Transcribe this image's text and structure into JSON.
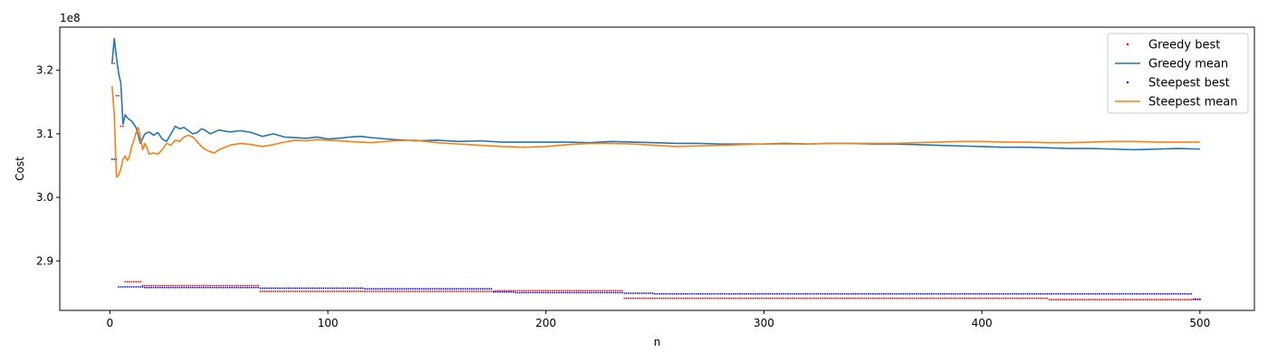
{
  "chart_data": {
    "type": "line",
    "xlabel": "n",
    "ylabel": "Cost",
    "y_offset_text": "1e8",
    "xlim": [
      -23,
      525
    ],
    "ylim": [
      2.822,
      3.268
    ],
    "x_ticks": [
      0,
      100,
      200,
      300,
      400,
      500
    ],
    "x_tick_labels": [
      "0",
      "100",
      "200",
      "300",
      "400",
      "500"
    ],
    "y_ticks": [
      2.9,
      3.0,
      3.1,
      3.2
    ],
    "y_tick_labels": [
      "2.9",
      "3.0",
      "3.1",
      "3.2"
    ],
    "grid": false,
    "legend_position": "top-right",
    "legend": [
      "Greedy best",
      "Greedy mean",
      "Steepest best",
      "Steepest mean"
    ],
    "colors": {
      "greedy_best": "#ff0000",
      "greedy_mean": "#1f77b4",
      "steepest_best": "#0000ff",
      "steepest_mean": "#ff7f0e"
    },
    "series": [
      {
        "name": "Greedy best",
        "kind": "step-markers",
        "steps": [
          [
            1,
            3.211
          ],
          [
            3,
            3.16
          ],
          [
            5,
            3.112
          ],
          [
            7,
            2.867
          ],
          [
            15,
            2.861
          ],
          [
            69,
            2.852
          ],
          [
            177,
            2.853
          ],
          [
            236,
            2.841
          ],
          [
            431,
            2.839
          ],
          [
            500,
            2.839
          ]
        ]
      },
      {
        "name": "Greedy mean",
        "kind": "line",
        "points": [
          [
            1,
            3.211
          ],
          [
            2,
            3.25
          ],
          [
            3,
            3.22
          ],
          [
            4,
            3.195
          ],
          [
            5,
            3.18
          ],
          [
            6,
            3.115
          ],
          [
            7,
            3.13
          ],
          [
            8,
            3.125
          ],
          [
            10,
            3.12
          ],
          [
            12,
            3.11
          ],
          [
            14,
            3.085
          ],
          [
            16,
            3.1
          ],
          [
            18,
            3.103
          ],
          [
            20,
            3.098
          ],
          [
            22,
            3.102
          ],
          [
            24,
            3.092
          ],
          [
            26,
            3.088
          ],
          [
            28,
            3.1
          ],
          [
            30,
            3.112
          ],
          [
            32,
            3.108
          ],
          [
            34,
            3.11
          ],
          [
            36,
            3.105
          ],
          [
            38,
            3.1
          ],
          [
            40,
            3.102
          ],
          [
            42,
            3.108
          ],
          [
            44,
            3.105
          ],
          [
            46,
            3.1
          ],
          [
            50,
            3.106
          ],
          [
            55,
            3.103
          ],
          [
            60,
            3.105
          ],
          [
            65,
            3.102
          ],
          [
            70,
            3.096
          ],
          [
            75,
            3.1
          ],
          [
            80,
            3.095
          ],
          [
            85,
            3.094
          ],
          [
            90,
            3.093
          ],
          [
            95,
            3.095
          ],
          [
            100,
            3.092
          ],
          [
            105,
            3.093
          ],
          [
            110,
            3.095
          ],
          [
            115,
            3.096
          ],
          [
            120,
            3.094
          ],
          [
            130,
            3.091
          ],
          [
            140,
            3.089
          ],
          [
            150,
            3.09
          ],
          [
            160,
            3.088
          ],
          [
            170,
            3.089
          ],
          [
            180,
            3.087
          ],
          [
            190,
            3.087
          ],
          [
            200,
            3.087
          ],
          [
            210,
            3.087
          ],
          [
            220,
            3.086
          ],
          [
            230,
            3.088
          ],
          [
            240,
            3.087
          ],
          [
            250,
            3.086
          ],
          [
            260,
            3.085
          ],
          [
            270,
            3.085
          ],
          [
            280,
            3.084
          ],
          [
            290,
            3.084
          ],
          [
            300,
            3.084
          ],
          [
            310,
            3.085
          ],
          [
            320,
            3.084
          ],
          [
            330,
            3.085
          ],
          [
            340,
            3.085
          ],
          [
            350,
            3.084
          ],
          [
            360,
            3.084
          ],
          [
            370,
            3.083
          ],
          [
            380,
            3.082
          ],
          [
            390,
            3.081
          ],
          [
            400,
            3.08
          ],
          [
            410,
            3.079
          ],
          [
            420,
            3.079
          ],
          [
            430,
            3.078
          ],
          [
            440,
            3.077
          ],
          [
            450,
            3.077
          ],
          [
            460,
            3.076
          ],
          [
            470,
            3.075
          ],
          [
            480,
            3.076
          ],
          [
            490,
            3.077
          ],
          [
            500,
            3.076
          ]
        ]
      },
      {
        "name": "Steepest best",
        "kind": "step-markers",
        "steps": [
          [
            1,
            3.06
          ],
          [
            4,
            2.859
          ],
          [
            16,
            2.858
          ],
          [
            69,
            2.857
          ],
          [
            117,
            2.856
          ],
          [
            176,
            2.851
          ],
          [
            186,
            2.85
          ],
          [
            236,
            2.849
          ],
          [
            250,
            2.848
          ],
          [
            497,
            2.84
          ],
          [
            500,
            2.84
          ]
        ]
      },
      {
        "name": "Steepest mean",
        "kind": "line",
        "points": [
          [
            1,
            3.175
          ],
          [
            2,
            3.13
          ],
          [
            3,
            3.032
          ],
          [
            4,
            3.035
          ],
          [
            5,
            3.045
          ],
          [
            6,
            3.06
          ],
          [
            7,
            3.065
          ],
          [
            8,
            3.058
          ],
          [
            9,
            3.065
          ],
          [
            10,
            3.08
          ],
          [
            11,
            3.09
          ],
          [
            12,
            3.102
          ],
          [
            13,
            3.11
          ],
          [
            14,
            3.095
          ],
          [
            15,
            3.075
          ],
          [
            16,
            3.085
          ],
          [
            17,
            3.078
          ],
          [
            18,
            3.068
          ],
          [
            20,
            3.07
          ],
          [
            22,
            3.068
          ],
          [
            24,
            3.075
          ],
          [
            26,
            3.085
          ],
          [
            28,
            3.082
          ],
          [
            30,
            3.09
          ],
          [
            32,
            3.088
          ],
          [
            34,
            3.095
          ],
          [
            36,
            3.098
          ],
          [
            38,
            3.095
          ],
          [
            40,
            3.088
          ],
          [
            42,
            3.08
          ],
          [
            44,
            3.075
          ],
          [
            46,
            3.072
          ],
          [
            48,
            3.07
          ],
          [
            50,
            3.075
          ],
          [
            55,
            3.082
          ],
          [
            60,
            3.085
          ],
          [
            65,
            3.083
          ],
          [
            70,
            3.08
          ],
          [
            75,
            3.083
          ],
          [
            80,
            3.087
          ],
          [
            85,
            3.09
          ],
          [
            90,
            3.089
          ],
          [
            95,
            3.091
          ],
          [
            100,
            3.09
          ],
          [
            110,
            3.088
          ],
          [
            120,
            3.086
          ],
          [
            130,
            3.089
          ],
          [
            140,
            3.09
          ],
          [
            150,
            3.086
          ],
          [
            160,
            3.084
          ],
          [
            170,
            3.082
          ],
          [
            180,
            3.08
          ],
          [
            190,
            3.079
          ],
          [
            200,
            3.08
          ],
          [
            210,
            3.083
          ],
          [
            220,
            3.085
          ],
          [
            230,
            3.085
          ],
          [
            240,
            3.084
          ],
          [
            250,
            3.082
          ],
          [
            260,
            3.08
          ],
          [
            270,
            3.081
          ],
          [
            280,
            3.082
          ],
          [
            290,
            3.083
          ],
          [
            300,
            3.084
          ],
          [
            310,
            3.084
          ],
          [
            320,
            3.084
          ],
          [
            330,
            3.085
          ],
          [
            340,
            3.085
          ],
          [
            350,
            3.085
          ],
          [
            360,
            3.085
          ],
          [
            370,
            3.086
          ],
          [
            380,
            3.087
          ],
          [
            390,
            3.088
          ],
          [
            400,
            3.088
          ],
          [
            410,
            3.087
          ],
          [
            420,
            3.087
          ],
          [
            430,
            3.086
          ],
          [
            440,
            3.086
          ],
          [
            450,
            3.087
          ],
          [
            460,
            3.088
          ],
          [
            470,
            3.088
          ],
          [
            480,
            3.087
          ],
          [
            490,
            3.087
          ],
          [
            500,
            3.087
          ]
        ]
      }
    ]
  }
}
